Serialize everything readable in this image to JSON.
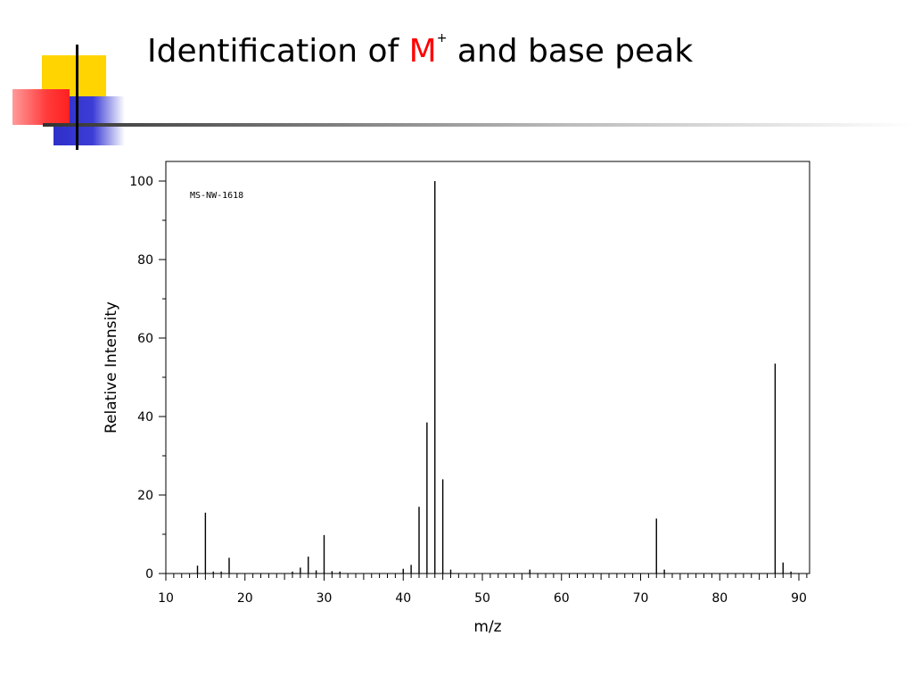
{
  "slide": {
    "title_prefix": "Identification of ",
    "title_symbol": "M",
    "title_superscript": "+",
    "title_suffix": " and base peak",
    "accent_color": "#ff0000",
    "decor_colors": {
      "yellow": "#ffd400",
      "red": "#ff3b3b",
      "blue": "#3333cc",
      "line": "#000000"
    }
  },
  "chart_data": {
    "type": "bar",
    "title": "",
    "annotation": "MS-NW-1618",
    "xlabel": "m/z",
    "ylabel": "Relative Intensity",
    "xlim": [
      10,
      91
    ],
    "ylim": [
      0,
      100
    ],
    "xticks": [
      10,
      20,
      30,
      40,
      50,
      60,
      70,
      80,
      90
    ],
    "yticks": [
      0,
      20,
      40,
      60,
      80,
      100
    ],
    "grid": false,
    "legend": "none",
    "peaks": [
      {
        "mz": 14,
        "intensity": 2
      },
      {
        "mz": 15,
        "intensity": 15.5
      },
      {
        "mz": 16,
        "intensity": 0.5
      },
      {
        "mz": 17,
        "intensity": 0.5
      },
      {
        "mz": 18,
        "intensity": 4
      },
      {
        "mz": 26,
        "intensity": 0.5
      },
      {
        "mz": 27,
        "intensity": 1.5
      },
      {
        "mz": 28,
        "intensity": 4.3
      },
      {
        "mz": 29,
        "intensity": 0.8
      },
      {
        "mz": 30,
        "intensity": 9.8
      },
      {
        "mz": 31,
        "intensity": 0.6
      },
      {
        "mz": 32,
        "intensity": 0.5
      },
      {
        "mz": 40,
        "intensity": 1.2
      },
      {
        "mz": 41,
        "intensity": 2.2
      },
      {
        "mz": 42,
        "intensity": 17
      },
      {
        "mz": 43,
        "intensity": 38.5
      },
      {
        "mz": 44,
        "intensity": 100
      },
      {
        "mz": 45,
        "intensity": 24
      },
      {
        "mz": 46,
        "intensity": 1
      },
      {
        "mz": 56,
        "intensity": 1
      },
      {
        "mz": 72,
        "intensity": 14
      },
      {
        "mz": 73,
        "intensity": 1
      },
      {
        "mz": 87,
        "intensity": 53.5
      },
      {
        "mz": 88,
        "intensity": 2.8
      },
      {
        "mz": 89,
        "intensity": 0.5
      }
    ]
  }
}
